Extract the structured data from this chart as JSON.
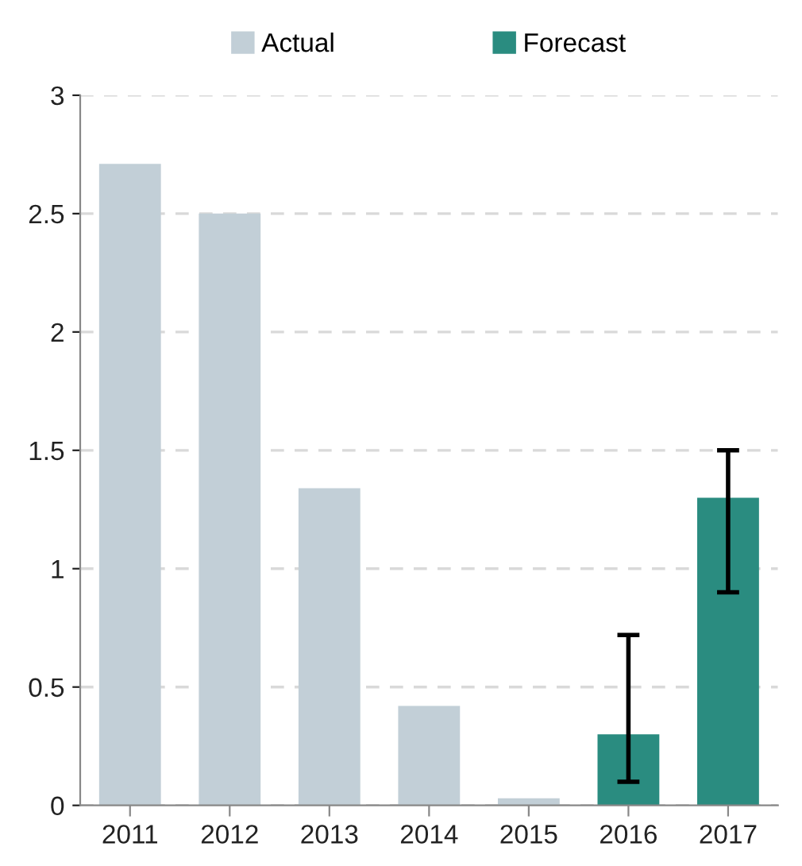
{
  "chart_data": {
    "type": "bar",
    "categories": [
      "2011",
      "2012",
      "2013",
      "2014",
      "2015",
      "2016",
      "2017"
    ],
    "series": [
      {
        "name": "Actual",
        "color": "#c2cfd7",
        "values": [
          2.71,
          2.5,
          1.34,
          0.42,
          0.03,
          null,
          null
        ]
      },
      {
        "name": "Forecast",
        "color": "#2a8c80",
        "values": [
          null,
          null,
          null,
          null,
          null,
          0.3,
          1.3
        ],
        "errors": [
          null,
          null,
          null,
          null,
          null,
          [
            0.1,
            0.72
          ],
          [
            0.9,
            1.5
          ]
        ]
      }
    ],
    "ylim": [
      0,
      3
    ],
    "yticks": [
      0,
      0.5,
      1,
      1.5,
      2,
      2.5,
      3
    ],
    "grid": "y",
    "legend": "top"
  }
}
